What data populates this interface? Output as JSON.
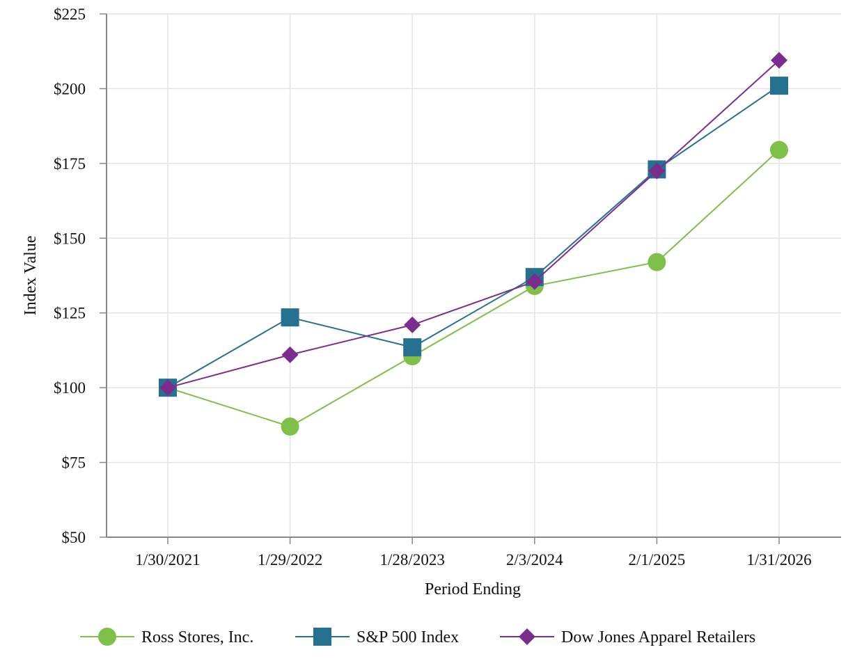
{
  "chart_data": {
    "type": "line",
    "title": "",
    "xlabel": "Period Ending",
    "ylabel": "Index Value",
    "categories": [
      "1/30/2021",
      "1/29/2022",
      "1/28/2023",
      "2/3/2024",
      "2/1/2025",
      "1/31/2026"
    ],
    "ylim": [
      50,
      225
    ],
    "yticks": [
      50,
      75,
      100,
      125,
      150,
      175,
      200,
      225
    ],
    "ytick_labels": [
      "$50",
      "$75",
      "$100",
      "$125",
      "$150",
      "$175",
      "$200",
      "$225"
    ],
    "grid": true,
    "legend_position": "bottom",
    "series": [
      {
        "name": "Ross Stores, Inc.",
        "values": [
          100,
          87,
          110.5,
          134,
          142,
          179.5
        ],
        "color": "#7ec04a",
        "marker": "circle"
      },
      {
        "name": "S&P 500 Index",
        "values": [
          100,
          123.5,
          113.5,
          137,
          173,
          201
        ],
        "color": "#26718f",
        "marker": "square"
      },
      {
        "name": "Dow Jones Apparel Retailers",
        "values": [
          100,
          111,
          121,
          135.5,
          172.5,
          209.5
        ],
        "color": "#7b2d8e",
        "marker": "diamond"
      }
    ]
  }
}
